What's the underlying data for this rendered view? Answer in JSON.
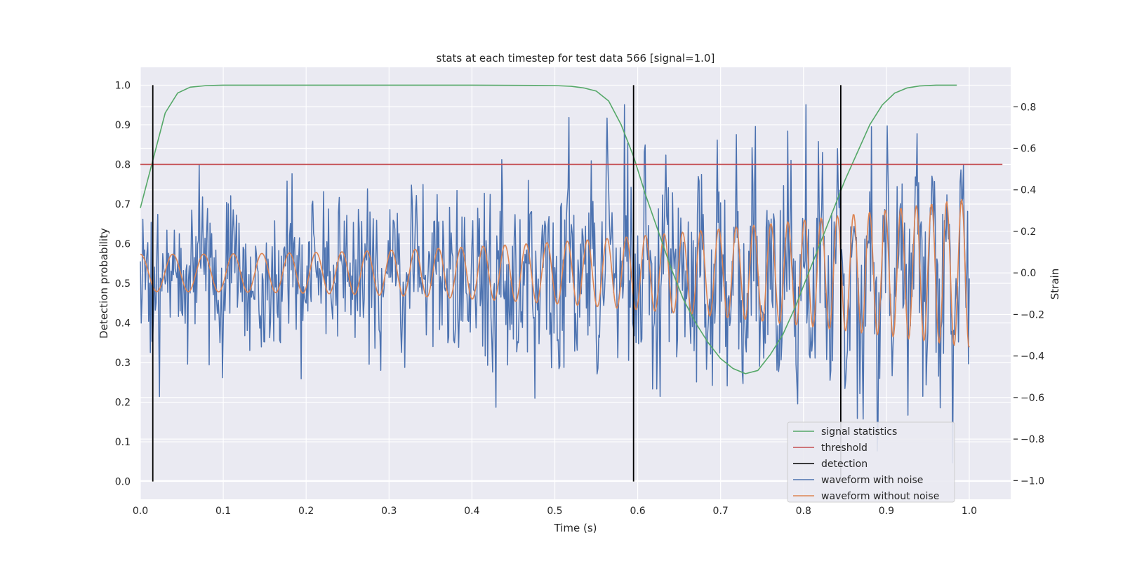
{
  "chart_data": {
    "type": "line",
    "title": "stats at each timestep for test data 566 [signal=1.0]",
    "xlabel": "Time (s)",
    "ylabel_left": "Detection probability",
    "ylabel_right": "Strain",
    "xlim": [
      0.0,
      1.05
    ],
    "ylim_left": [
      -0.045,
      1.045
    ],
    "ylim_right": [
      -1.09,
      0.99
    ],
    "x_ticks": [
      0.0,
      0.1,
      0.2,
      0.3,
      0.4,
      0.5,
      0.6,
      0.7,
      0.8,
      0.9,
      1.0
    ],
    "y_ticks_left": [
      0.0,
      0.1,
      0.2,
      0.3,
      0.4,
      0.5,
      0.6,
      0.7,
      0.8,
      0.9,
      1.0
    ],
    "y_ticks_right": [
      -1.0,
      -0.8,
      -0.6,
      -0.4,
      -0.2,
      0.0,
      0.2,
      0.4,
      0.6,
      0.8
    ],
    "x_tick_labels": [
      "0.0",
      "0.1",
      "0.2",
      "0.3",
      "0.4",
      "0.5",
      "0.6",
      "0.7",
      "0.8",
      "0.9",
      "1.0"
    ],
    "y_tick_labels_left": [
      "0.0",
      "0.1",
      "0.2",
      "0.3",
      "0.4",
      "0.5",
      "0.6",
      "0.7",
      "0.8",
      "0.9",
      "1.0"
    ],
    "y_tick_labels_right": [
      "−1.0",
      "−0.8",
      "−0.6",
      "−0.4",
      "−0.2",
      "0.0",
      "0.2",
      "0.4",
      "0.6",
      "0.8"
    ],
    "grid": true,
    "legend_position": "lower-right",
    "colors": {
      "background": "#eaeaf2",
      "grid": "#ffffff",
      "signal_statistics": "#55a868",
      "threshold": "#c44e52",
      "detection": "#000000",
      "waveform_with_noise": "#4c72b0",
      "waveform_without_noise": "#dd8452"
    },
    "signal_statistics": {
      "name": "signal statistics",
      "x": [
        0.0,
        0.015,
        0.03,
        0.045,
        0.06,
        0.08,
        0.1,
        0.2,
        0.3,
        0.4,
        0.5,
        0.52,
        0.535,
        0.55,
        0.565,
        0.58,
        0.595,
        0.61,
        0.625,
        0.64,
        0.655,
        0.67,
        0.685,
        0.7,
        0.715,
        0.73,
        0.745,
        0.76,
        0.775,
        0.79,
        0.805,
        0.82,
        0.835,
        0.85,
        0.865,
        0.88,
        0.895,
        0.91,
        0.925,
        0.94,
        0.96,
        0.985
      ],
      "y": [
        0.69,
        0.81,
        0.93,
        0.98,
        0.995,
        0.999,
        1.0,
        1.0,
        1.0,
        1.0,
        0.999,
        0.997,
        0.993,
        0.985,
        0.96,
        0.9,
        0.82,
        0.72,
        0.63,
        0.54,
        0.46,
        0.4,
        0.35,
        0.31,
        0.285,
        0.272,
        0.28,
        0.32,
        0.37,
        0.44,
        0.52,
        0.6,
        0.68,
        0.76,
        0.83,
        0.9,
        0.95,
        0.98,
        0.993,
        0.998,
        1.0,
        1.0
      ]
    },
    "threshold": {
      "name": "threshold",
      "value": 0.8,
      "x_range": [
        0.0,
        1.04
      ]
    },
    "detection": {
      "name": "detection",
      "x": [
        0.015,
        0.595,
        0.845
      ],
      "y_range": [
        0.0,
        1.0
      ]
    },
    "waveform_with_noise": {
      "name": "waveform with noise",
      "x_range": [
        0.0,
        1.0
      ],
      "base_amplitude": 0.09,
      "amplitude_growth": 1.3,
      "noise_amplitude": 0.19,
      "y_min": -1.0,
      "y_max": 0.81
    },
    "waveform_without_noise": {
      "name": "waveform without noise",
      "x_range": [
        0.0,
        1.0
      ],
      "start_amplitude": 0.09,
      "end_amplitude": 0.36,
      "start_frequency_hz": 25,
      "end_frequency_hz": 56
    }
  }
}
